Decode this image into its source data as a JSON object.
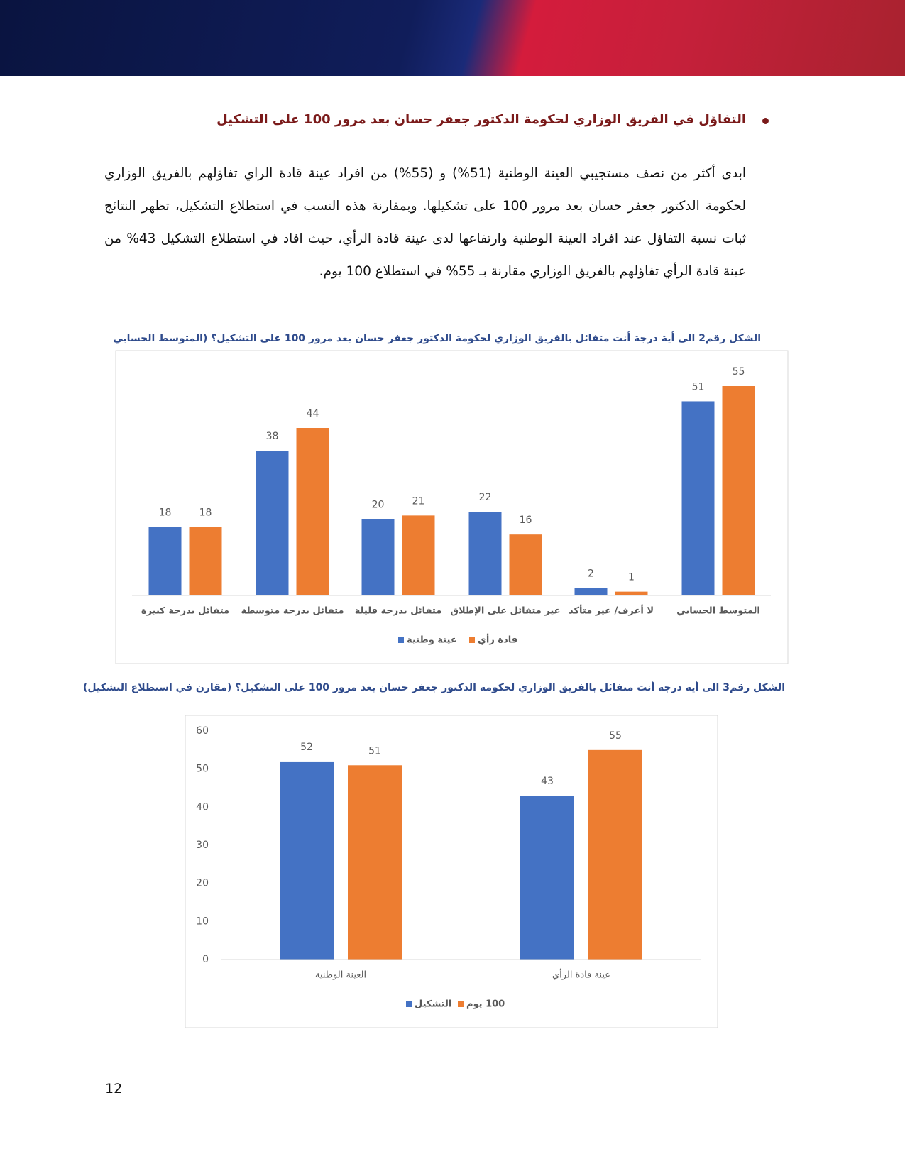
{
  "heading": "التفاؤل في الفريق الوزاري لحكومة الدكتور جعفر حسان بعد مرور 100 على التشكيل",
  "paragraph": "ابدى أكثر من نصف مستجيبي العينة الوطنية (51%) و (55%) من افراد عينة قادة الراي تفاؤلهم بالفريق الوزاري لحكومة الدكتور جعفر حسان بعد مرور 100 على تشكيلها. وبمقارنة هذه النسب في استطلاع التشكيل، تظهر النتائج ثبات نسبة التفاؤل عند افراد العينة الوطنية وارتفاعها لدى عينة قادة الرأي، حيث افاد في استطلاع التشكيل 43% من عينة قادة الرأي تفاؤلهم بالفريق الوزاري مقارنة بـ 55% في استطلاع 100 يوم.",
  "page_number": "12",
  "chart_data": [
    {
      "type": "bar",
      "title": "الشكل رقم2  الى أية درجة أنت متفائل بالفريق الوزاري لحكومة الدكتور جعفر حسان بعد مرور 100 على التشكيل؟ (المتوسط الحسابي",
      "categories": [
        "المتوسط الحسابي",
        "لا أعرف/ غير متأكد",
        "غير متفائل على الإطلاق",
        "متفائل بدرجة قليلة",
        "متفائل بدرجة متوسطة",
        "متفائل بدرجة كبيرة"
      ],
      "series": [
        {
          "name": "عينة وطنية",
          "color": "#4472c4",
          "values": [
            51,
            2,
            22,
            20,
            38,
            18
          ]
        },
        {
          "name": "قادة رأي",
          "color": "#ed7d31",
          "values": [
            55,
            1,
            16,
            21,
            44,
            18
          ]
        }
      ]
    },
    {
      "type": "bar",
      "title": "الشكل رقم3  الى أية درجة أنت متفائل بالفريق الوزاري لحكومة الدكتور جعفر حسان بعد مرور 100 على التشكيل؟ (مقارن في استطلاع التشكيل)",
      "categories": [
        "العينة الوطنية",
        "عينة قادة الرأي"
      ],
      "series": [
        {
          "name": "التشكيل",
          "color": "#4472c4",
          "values": [
            52,
            43
          ]
        },
        {
          "name": "100 يوم",
          "color": "#ed7d31",
          "values": [
            51,
            55
          ]
        }
      ],
      "ylim": [
        0,
        60
      ],
      "yticks": [
        0,
        10,
        20,
        30,
        40,
        50,
        60
      ],
      "grid": false
    }
  ]
}
